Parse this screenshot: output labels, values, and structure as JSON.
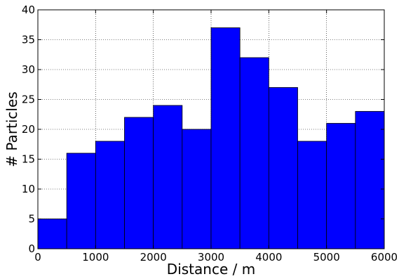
{
  "chart_data": {
    "type": "bar",
    "chart_kind": "histogram",
    "title": "",
    "xlabel": "Distance / m",
    "ylabel": "# Particles",
    "xlim": [
      0,
      6000
    ],
    "ylim": [
      0,
      40
    ],
    "x_ticks": [
      0,
      1000,
      2000,
      3000,
      4000,
      5000,
      6000
    ],
    "y_ticks": [
      0,
      5,
      10,
      15,
      20,
      25,
      30,
      35,
      40
    ],
    "bin_edges": [
      0,
      500,
      1000,
      1500,
      2000,
      2500,
      3000,
      3500,
      4000,
      4500,
      5000,
      5500,
      6000
    ],
    "values": [
      5,
      16,
      18,
      22,
      24,
      20,
      37,
      32,
      27,
      18,
      21,
      23
    ],
    "grid": true,
    "bar_color": "#0000ff",
    "edge_color": "#000000"
  }
}
